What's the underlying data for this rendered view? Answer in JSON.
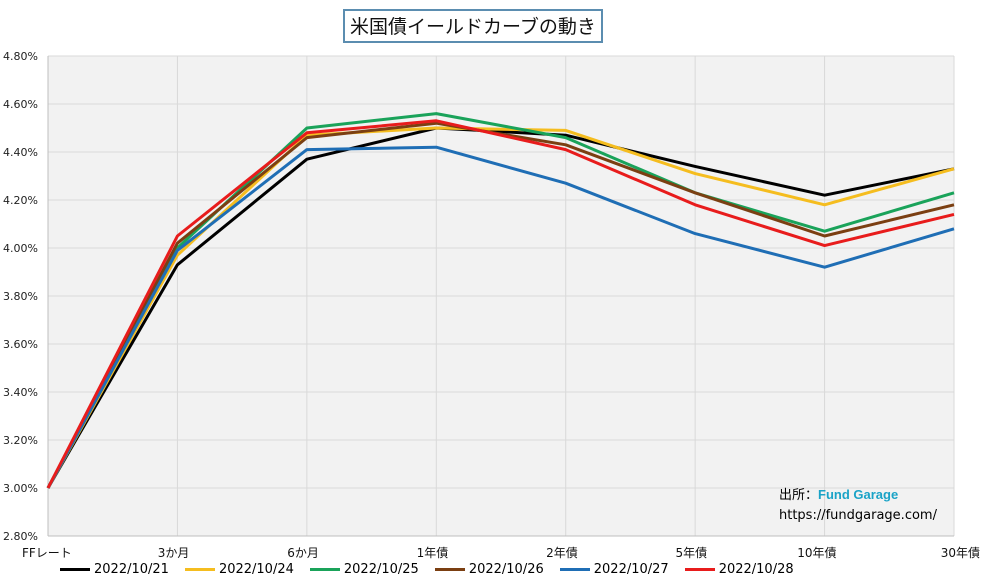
{
  "chart_data": {
    "type": "line",
    "title": "米国債イールドカーブの動き",
    "categories": [
      "FFレート",
      "3か月",
      "6か月",
      "1年債",
      "2年債",
      "5年債",
      "10年債",
      "30年債"
    ],
    "ylim": [
      2.8,
      4.8
    ],
    "yticks": [
      "2.80%",
      "3.00%",
      "3.20%",
      "3.40%",
      "3.60%",
      "3.80%",
      "4.00%",
      "4.20%",
      "4.40%",
      "4.60%",
      "4.80%"
    ],
    "grid": true,
    "legend_position": "bottom",
    "series": [
      {
        "name": "2022/10/21",
        "color": "#000000",
        "values": [
          3.0,
          3.93,
          4.37,
          4.5,
          4.47,
          4.34,
          4.22,
          4.33
        ]
      },
      {
        "name": "2022/10/24",
        "color": "#f5bd1f",
        "values": [
          3.0,
          3.97,
          4.47,
          4.5,
          4.49,
          4.31,
          4.18,
          4.33
        ]
      },
      {
        "name": "2022/10/25",
        "color": "#1aa35a",
        "values": [
          3.0,
          4.0,
          4.5,
          4.56,
          4.46,
          4.23,
          4.07,
          4.23
        ]
      },
      {
        "name": "2022/10/26",
        "color": "#7b3f12",
        "values": [
          3.0,
          4.02,
          4.46,
          4.52,
          4.43,
          4.23,
          4.05,
          4.18
        ]
      },
      {
        "name": "2022/10/27",
        "color": "#1f6eb5",
        "values": [
          3.0,
          3.99,
          4.41,
          4.42,
          4.27,
          4.06,
          3.92,
          4.08
        ]
      },
      {
        "name": "2022/10/28",
        "color": "#e81c1c",
        "values": [
          3.0,
          4.05,
          4.48,
          4.53,
          4.41,
          4.18,
          4.01,
          4.14
        ]
      }
    ]
  },
  "source": {
    "label": "出所：",
    "brand": "Fund Garage",
    "url": "https://fundgarage.com/"
  }
}
